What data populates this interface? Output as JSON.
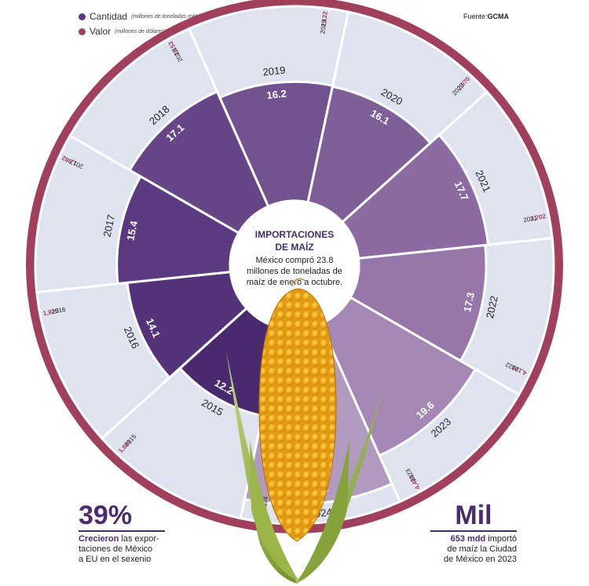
{
  "legend": {
    "cantidad_label": "Cantidad",
    "cantidad_note": "(millones de toneladas métricas)",
    "valor_label": "Valor",
    "valor_note": "(millones de dólares)"
  },
  "source": {
    "prefix": "Fuente:",
    "name": "GCMA"
  },
  "center": {
    "title_line1": "IMPORTACIONES",
    "title_line2": "DE MAÍZ",
    "text_line1": "México compró 23.8",
    "text_line2": "millones de toneladas de",
    "text_line3": "maíz de enero a octubre."
  },
  "stat_left": {
    "big": "39%",
    "bold": "Crecieron",
    "line1": " las expor-",
    "line2": "taciones de México",
    "line3": "a EU en el sexenio"
  },
  "stat_right": {
    "big": "Mil",
    "bold": "653 mdd",
    "line1": " importó",
    "line2": "de maíz la Ciudad",
    "line3": "de México en 2023"
  },
  "colors": {
    "outer_band": "#a0405d",
    "inner_ring": "#dfe3ef",
    "sector_palette": [
      "#4a2a6e",
      "#55337a",
      "#5c3a80",
      "#674687",
      "#72528f",
      "#7f5f98",
      "#8b6ba1",
      "#9777aa",
      "#a487b4",
      "#b19ac0"
    ]
  },
  "chart_data": {
    "type": "radial_bar",
    "title": "IMPORTACIONES DE MAÍZ",
    "categories": [
      "2015",
      "2016",
      "2017",
      "2018",
      "2019",
      "2020",
      "2021",
      "2022",
      "2023",
      "2024"
    ],
    "series": [
      {
        "name": "Cantidad",
        "values": [
          12.2,
          14.1,
          15.4,
          17.1,
          16.2,
          16.1,
          17.7,
          17.3,
          19.6,
          23.8
        ]
      },
      {
        "name": "Valor",
        "values": [
          1.661,
          1.925,
          1.982,
          2.153,
          2.122,
          2.07,
          3.702,
          4.101,
          4.461,
          3.97
        ]
      }
    ],
    "cantidad_labels": [
      "12.2",
      "14.1",
      "15.4",
      "17.1",
      "16.2",
      "16.1",
      "17.7",
      "17.3",
      "19.6",
      "23.8"
    ],
    "valor_labels": [
      "1,661",
      "1,925",
      "1,982",
      "2,153",
      "2,122",
      "2,070",
      "3,702",
      "4,101",
      "4,461",
      "3,970"
    ]
  }
}
